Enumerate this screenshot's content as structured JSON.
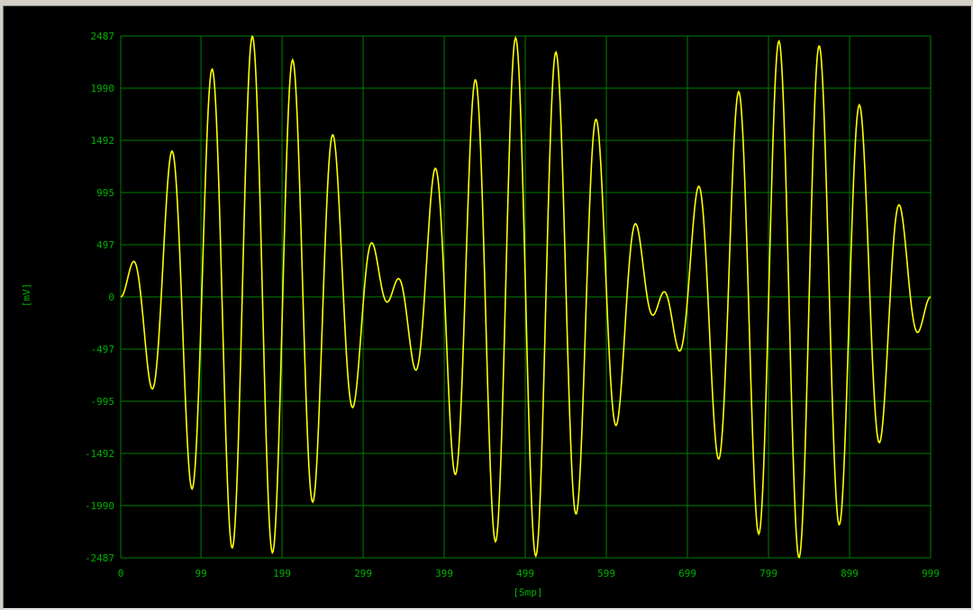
{
  "chart_data": {
    "type": "line",
    "title": "",
    "xlabel": "[Smp]",
    "ylabel": "[mV]",
    "xlim": [
      0,
      999
    ],
    "ylim": [
      -2487,
      2487
    ],
    "x_ticks": [
      0,
      99,
      199,
      299,
      399,
      499,
      599,
      699,
      799,
      899,
      999
    ],
    "y_ticks": [
      2487,
      1990,
      1492,
      995,
      497,
      0,
      -497,
      -995,
      -1492,
      -1990,
      -2487
    ],
    "grid": true,
    "background_color": "#000000",
    "grid_color": "#008000",
    "tick_label_color": "#00b000",
    "line_color": "#ffff00",
    "series": [
      {
        "samples": 1000,
        "amplitude_mv": 2487,
        "carrier_cycles": 20,
        "envelope_cycles": 1.5
      }
    ]
  }
}
